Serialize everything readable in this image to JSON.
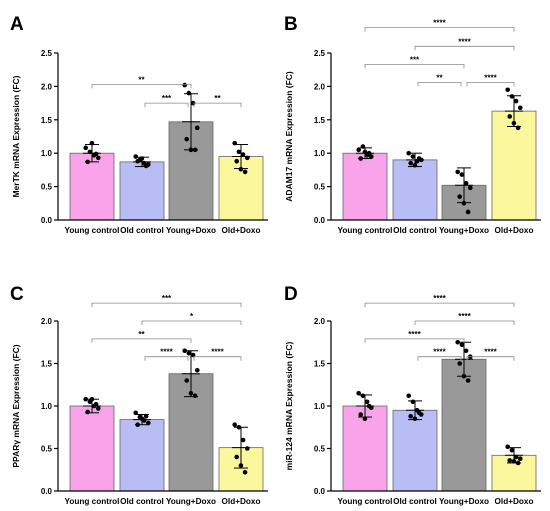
{
  "chart_data": [
    {
      "type": "bar",
      "panel_label": "A",
      "ylabel": "MerTK mRNA Expression (FC)",
      "categories": [
        "Young control",
        "Old control",
        "Young+Doxo",
        "Old+Doxo"
      ],
      "colors": [
        "#f9a3ea",
        "#babcf6",
        "#999999",
        "#fbf79c"
      ],
      "ylim": [
        0,
        2.5
      ],
      "yticks": [
        "0.0",
        "0.5",
        "1.0",
        "1.5",
        "2.0",
        "2.5"
      ],
      "values": [
        1.0,
        0.87,
        1.47,
        0.95
      ],
      "errors": [
        0.13,
        0.07,
        0.42,
        0.18
      ],
      "points": [
        [
          1.08,
          1.02,
          0.97,
          0.93,
          0.87,
          1.15,
          0.99
        ],
        [
          0.95,
          0.9,
          0.85,
          0.83,
          0.88,
          0.92,
          0.81
        ],
        [
          2.02,
          1.9,
          1.75,
          1.38,
          1.21,
          1.05,
          1.05
        ],
        [
          1.15,
          1.02,
          0.98,
          0.93,
          0.88,
          0.76,
          0.72
        ]
      ],
      "comparisons": [
        {
          "from": 0,
          "to": 2,
          "label": "**",
          "level": 2.03
        },
        {
          "from": 1,
          "to": 2,
          "label": "***",
          "level": 1.75
        },
        {
          "from": 2,
          "to": 3,
          "label": "**",
          "level": 1.75
        }
      ]
    },
    {
      "type": "bar",
      "panel_label": "B",
      "ylabel": "ADAM17 mRNA Expression (FC)",
      "categories": [
        "Young control",
        "Old control",
        "Young+Doxo",
        "Old+Doxo"
      ],
      "colors": [
        "#f9a3ea",
        "#babcf6",
        "#999999",
        "#fbf79c"
      ],
      "ylim": [
        0,
        2.5
      ],
      "yticks": [
        "0.0",
        "0.5",
        "1.0",
        "1.5",
        "2.0",
        "2.5"
      ],
      "values": [
        1.0,
        0.9,
        0.52,
        1.63
      ],
      "errors": [
        0.08,
        0.1,
        0.26,
        0.23
      ],
      "points": [
        [
          1.05,
          1.1,
          0.97,
          0.95,
          0.92,
          1.02,
          1.0
        ],
        [
          1.0,
          0.95,
          0.88,
          0.9,
          0.85,
          0.82,
          0.92
        ],
        [
          0.72,
          0.68,
          0.55,
          0.48,
          0.35,
          0.25,
          0.12
        ],
        [
          1.95,
          1.85,
          1.78,
          1.68,
          1.55,
          1.45,
          1.38
        ]
      ],
      "comparisons": [
        {
          "from": 0,
          "to": 3,
          "label": "****",
          "level": 2.88
        },
        {
          "from": 1,
          "to": 3,
          "label": "****",
          "level": 2.6
        },
        {
          "from": 0,
          "to": 2,
          "label": "***",
          "level": 2.33
        },
        {
          "from": 1,
          "to": 2,
          "label": "**",
          "level": 2.06
        },
        {
          "from": 2,
          "to": 3,
          "label": "****",
          "level": 2.06
        }
      ]
    },
    {
      "type": "bar",
      "panel_label": "C",
      "ylabel": "PPARγ mRNA Expression (FC)",
      "categories": [
        "Young control",
        "Old control",
        "Young+Doxo",
        "Old+Doxo"
      ],
      "colors": [
        "#f9a3ea",
        "#babcf6",
        "#999999",
        "#fbf79c"
      ],
      "ylim": [
        0,
        2.0
      ],
      "yticks": [
        "0.0",
        "0.5",
        "1.0",
        "1.5",
        "2.0"
      ],
      "values": [
        1.0,
        0.84,
        1.38,
        0.51
      ],
      "errors": [
        0.08,
        0.06,
        0.27,
        0.24
      ],
      "points": [
        [
          1.08,
          1.05,
          1.0,
          0.97,
          0.93,
          1.08,
          1.02
        ],
        [
          0.92,
          0.87,
          0.83,
          0.8,
          0.78,
          0.85,
          0.88
        ],
        [
          1.65,
          1.62,
          1.6,
          1.42,
          1.3,
          1.15,
          1.12
        ],
        [
          0.78,
          0.75,
          0.6,
          0.5,
          0.4,
          0.3,
          0.22
        ]
      ],
      "comparisons": [
        {
          "from": 0,
          "to": 3,
          "label": "***",
          "level": 2.21
        },
        {
          "from": 1,
          "to": 3,
          "label": "*",
          "level": 2.0
        },
        {
          "from": 0,
          "to": 2,
          "label": "**",
          "level": 1.79
        },
        {
          "from": 1,
          "to": 2,
          "label": "****",
          "level": 1.58
        },
        {
          "from": 2,
          "to": 3,
          "label": "****",
          "level": 1.58
        }
      ]
    },
    {
      "type": "bar",
      "panel_label": "D",
      "ylabel": "miR-124 mRNA Expression (FC)",
      "categories": [
        "Young control",
        "Old control",
        "Young+Doxo",
        "Old+Doxo"
      ],
      "colors": [
        "#f9a3ea",
        "#babcf6",
        "#999999",
        "#fbf79c"
      ],
      "ylim": [
        0,
        2.0
      ],
      "yticks": [
        "0.0",
        "0.5",
        "1.0",
        "1.5",
        "2.0"
      ],
      "values": [
        1.0,
        0.95,
        1.55,
        0.42
      ],
      "errors": [
        0.13,
        0.11,
        0.2,
        0.09
      ],
      "points": [
        [
          1.15,
          1.12,
          1.05,
          0.98,
          0.9,
          0.85,
          1.0
        ],
        [
          1.12,
          1.05,
          0.95,
          0.9,
          0.88,
          0.85,
          0.92
        ],
        [
          1.75,
          1.72,
          1.65,
          1.58,
          1.5,
          1.35,
          1.3
        ],
        [
          0.52,
          0.48,
          0.4,
          0.38,
          0.36,
          0.35,
          0.33
        ]
      ],
      "comparisons": [
        {
          "from": 0,
          "to": 3,
          "label": "****",
          "level": 2.21
        },
        {
          "from": 1,
          "to": 3,
          "label": "****",
          "level": 2.0
        },
        {
          "from": 0,
          "to": 2,
          "label": "****",
          "level": 1.79
        },
        {
          "from": 1,
          "to": 2,
          "label": "****",
          "level": 1.58
        },
        {
          "from": 2,
          "to": 3,
          "label": "****",
          "level": 1.58
        }
      ]
    }
  ]
}
